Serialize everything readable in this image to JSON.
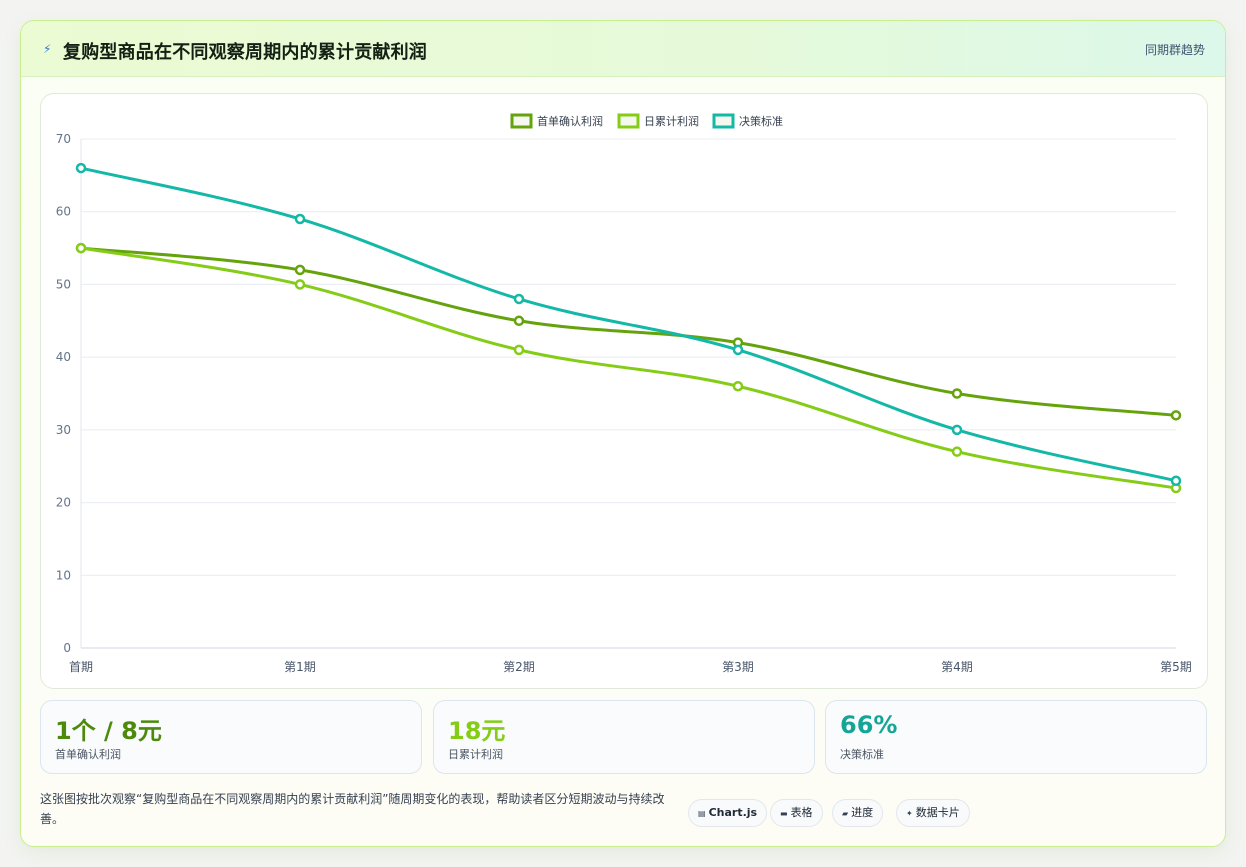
{
  "header": {
    "title": "复购型商品在不同观察周期内的累计贡献利润",
    "link": "同期群趋势",
    "title_icon": "lightning-icon"
  },
  "chart_data": {
    "type": "line",
    "categories": [
      "首期",
      "第1期",
      "第2期",
      "第3期",
      "第4期",
      "第5期"
    ],
    "series": [
      {
        "name": "首单确认利润",
        "color": "#65a30d",
        "values": [
          55,
          52,
          45,
          42,
          35,
          32
        ]
      },
      {
        "name": "日累计利润",
        "color": "#84cc16",
        "values": [
          55,
          50,
          41,
          36,
          27,
          22
        ]
      },
      {
        "name": "决策标准",
        "color": "#14b8a6",
        "values": [
          66,
          59,
          48,
          41,
          30,
          23
        ]
      }
    ],
    "ylim": [
      0,
      70
    ],
    "yticks": [
      0,
      10,
      20,
      30,
      40,
      50,
      60,
      70
    ],
    "grid": true,
    "legend": "top-center"
  },
  "stats": [
    {
      "value": "1个 / 8元",
      "label": "首单确认利润",
      "color": "#4d8a0c"
    },
    {
      "value": "18元",
      "label": "日累计利润",
      "color": "#84cc16"
    },
    {
      "value": "66%",
      "label": "决策标准",
      "color": "#14a596"
    }
  ],
  "footer": {
    "description": "这张图按批次观察“复购型商品在不同观察周期内的累计贡献利润”随周期变化的表现，帮助读者区分短期波动与持续改善。",
    "chips": [
      {
        "label": "Chart.js",
        "icon": "chart-icon"
      },
      {
        "label": "表格",
        "icon": "table-icon"
      },
      {
        "label": "进度",
        "icon": "progress-icon"
      },
      {
        "label": "数据卡片",
        "icon": "sparkle-icon"
      }
    ]
  }
}
